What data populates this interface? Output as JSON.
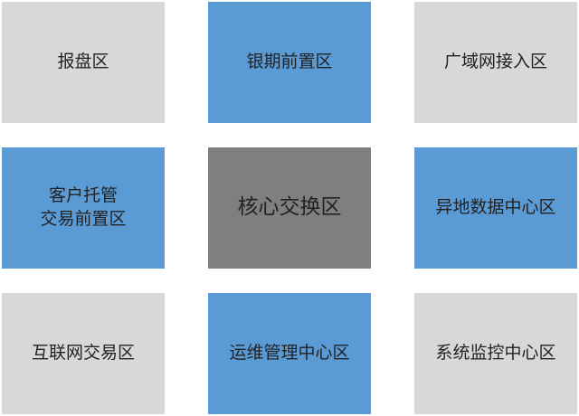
{
  "colors": {
    "gray": "#d8d8d8",
    "blue": "#5b9bd5",
    "core": "#7f7f7f",
    "text": "#222222"
  },
  "zones": [
    {
      "label": "报盘区",
      "color": "gray"
    },
    {
      "label": "银期前置区",
      "color": "blue"
    },
    {
      "label": "广域网接入区",
      "color": "gray"
    },
    {
      "label": "客户托管\n交易前置区",
      "color": "blue"
    },
    {
      "label": "核心交换区",
      "color": "core"
    },
    {
      "label": "异地数据中心区",
      "color": "blue"
    },
    {
      "label": "互联网交易区",
      "color": "gray"
    },
    {
      "label": "运维管理中心区",
      "color": "blue"
    },
    {
      "label": "系统监控中心区",
      "color": "gray"
    }
  ]
}
